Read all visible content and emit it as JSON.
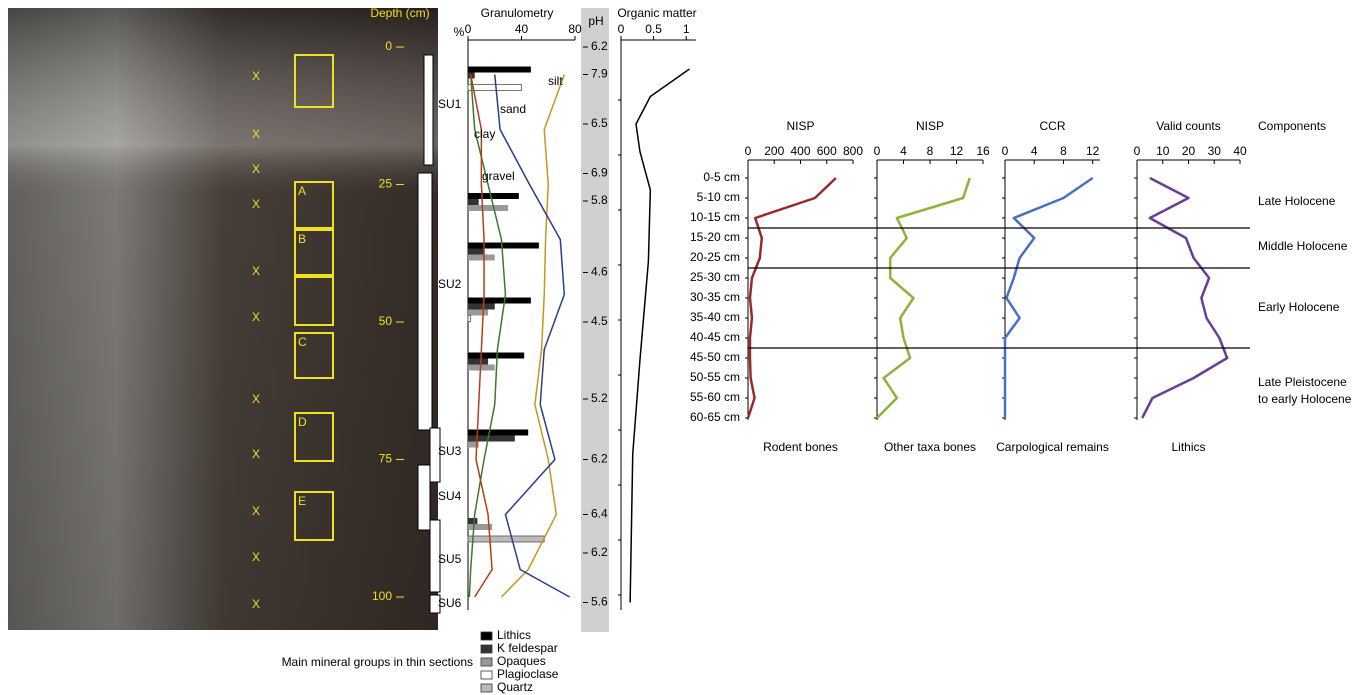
{
  "profile": {
    "depth_label": "Depth (cm)",
    "depth_ticks": [
      0,
      25,
      50,
      75,
      100
    ],
    "units": [
      "SU1",
      "SU2",
      "SU3",
      "SU4",
      "SU5",
      "SU6"
    ],
    "thin_sections": [
      "A",
      "B",
      "C",
      "D",
      "E"
    ],
    "samples": [
      "X",
      "X",
      "X",
      "X",
      "X",
      "X",
      "X",
      "X",
      "X",
      "X",
      "X"
    ]
  },
  "components": {
    "title": "Components",
    "periods": [
      [
        "Late Holocene"
      ],
      [
        "Middle Holocene"
      ],
      [
        "Early Holocene"
      ],
      [
        "Late Pleistocene",
        "to early Holocene"
      ]
    ]
  },
  "chart_data": [
    {
      "type": "depth-line",
      "title": "Granulometry",
      "y_label": "%",
      "x": [
        5,
        15,
        25,
        35,
        45,
        55,
        65,
        75,
        85,
        95,
        100
      ],
      "xlim": [
        0,
        100
      ],
      "ylim": [
        0,
        80
      ],
      "yticks": [
        0,
        40,
        80
      ],
      "series": [
        {
          "name": "silt",
          "color": "#c8961e",
          "values": [
            72,
            57,
            60,
            58,
            57,
            55,
            50,
            60,
            66,
            45,
            25
          ]
        },
        {
          "name": "sand",
          "color": "#2a3f8f",
          "values": [
            20,
            24,
            46,
            69,
            72,
            57,
            54,
            65,
            28,
            39,
            76
          ]
        },
        {
          "name": "clay",
          "color": "#3a7a2a",
          "values": [
            2,
            5,
            15,
            25,
            28,
            22,
            20,
            12,
            5,
            2,
            1
          ]
        },
        {
          "name": "gravel",
          "color": "#b0401a",
          "values": [
            2,
            10,
            10,
            12,
            12,
            10,
            8,
            6,
            15,
            18,
            5
          ]
        }
      ]
    },
    {
      "type": "depth-bar",
      "title": "Main mineral groups in thin sections",
      "x": [
        5,
        28,
        37,
        47,
        57,
        71,
        86
      ],
      "xlim": [
        0,
        100
      ],
      "ylim": [
        0,
        80
      ],
      "series": [
        {
          "name": "Lithics",
          "color": "#000000",
          "values": [
            47,
            38,
            53,
            47,
            42,
            45,
            0
          ]
        },
        {
          "name": "K feldespar",
          "color": "#333333",
          "values": [
            5,
            8,
            12,
            20,
            15,
            35,
            7
          ]
        },
        {
          "name": "Opaques",
          "color": "#999999",
          "values": [
            0,
            30,
            20,
            15,
            20,
            8,
            18
          ]
        },
        {
          "name": "Plagioclase",
          "color": "#ffffff",
          "values": [
            40,
            0,
            0,
            2,
            0,
            0,
            0
          ]
        },
        {
          "name": "Quartz",
          "color": "#bbbbbb",
          "values": [
            0,
            0,
            0,
            0,
            0,
            0,
            57
          ]
        }
      ]
    },
    {
      "type": "depth-text",
      "title": "pH",
      "x": [
        0,
        5,
        14,
        23,
        28,
        41,
        50,
        64,
        75,
        85,
        92,
        101
      ],
      "xlim": [
        0,
        100
      ],
      "values": [
        6.2,
        7.9,
        6.5,
        6.9,
        5.8,
        4.6,
        4.5,
        5.2,
        6.2,
        6.4,
        6.2,
        5.6
      ]
    },
    {
      "type": "depth-line",
      "title": "Organic matter",
      "x": [
        4,
        9,
        14,
        19,
        26,
        39,
        57,
        74,
        101
      ],
      "xlim": [
        0,
        100
      ],
      "ylim": [
        0,
        1.15
      ],
      "yticks": [
        0,
        0.5,
        1
      ],
      "series": [
        {
          "color": "#000000",
          "values": [
            1.05,
            0.45,
            0.23,
            0.29,
            0.45,
            0.42,
            0.29,
            0.18,
            0.14
          ]
        }
      ]
    },
    {
      "type": "line",
      "title": "NISP",
      "x_label": "Rodent bones",
      "color": "#9b2a2a",
      "categories": [
        "0-5 cm",
        "5-10 cm",
        "10-15 cm",
        "15-20 cm",
        "20-25 cm",
        "25-30 cm",
        "30-35 cm",
        "35-40 cm",
        "40-45 cm",
        "45-50 cm",
        "50-55 cm",
        "55-60 cm",
        "60-65 cm"
      ],
      "values": [
        670,
        510,
        55,
        105,
        90,
        30,
        15,
        30,
        15,
        15,
        20,
        50,
        0
      ],
      "ylim": [
        0,
        800
      ],
      "yticks": [
        0,
        200,
        400,
        600,
        800
      ]
    },
    {
      "type": "line",
      "title": "NISP",
      "x_label": "Other taxa bones",
      "color": "#8db33a",
      "values": [
        14,
        13,
        3,
        4.5,
        2,
        2,
        5.5,
        3.5,
        4,
        5,
        1,
        3,
        0
      ],
      "ylim": [
        0,
        16
      ],
      "yticks": [
        0,
        4,
        8,
        12,
        16
      ]
    },
    {
      "type": "line",
      "title": "CCR",
      "x_label": "Carpological remains",
      "color": "#4a6fbf",
      "values": [
        12,
        8,
        1.2,
        4,
        2,
        1.2,
        0.2,
        2,
        0,
        0,
        0,
        0,
        0
      ],
      "ylim": [
        0,
        13
      ],
      "yticks": [
        0,
        4,
        8,
        12
      ]
    },
    {
      "type": "line",
      "title": "Valid counts",
      "x_label": "Lithics",
      "color": "#6a3d9a",
      "values": [
        5,
        20,
        5,
        19,
        22,
        28,
        25,
        27,
        32,
        35,
        22,
        6,
        2
      ],
      "ylim": [
        0,
        40
      ],
      "yticks": [
        0,
        10,
        20,
        30,
        40
      ]
    }
  ]
}
